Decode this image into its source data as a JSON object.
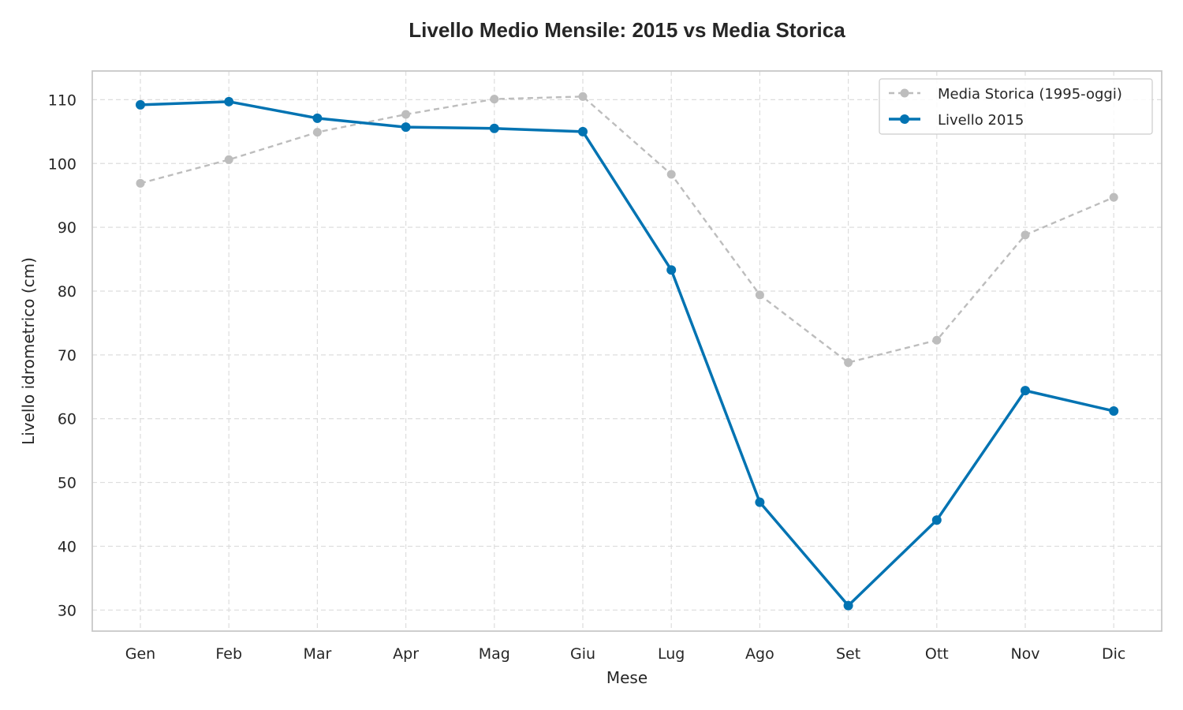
{
  "chart_data": {
    "type": "line",
    "title": "Livello Medio Mensile: 2015 vs Media Storica",
    "xlabel": "Mese",
    "ylabel": "Livello idrometrico (cm)",
    "categories": [
      "Gen",
      "Feb",
      "Mar",
      "Apr",
      "Mag",
      "Giu",
      "Lug",
      "Ago",
      "Set",
      "Ott",
      "Nov",
      "Dic"
    ],
    "ylim": [
      26.7,
      114.5
    ],
    "yticks": [
      30,
      40,
      50,
      60,
      70,
      80,
      90,
      100,
      110
    ],
    "grid": true,
    "legend_position": "top-right",
    "series": [
      {
        "name": "Media Storica (1995-oggi)",
        "style": "dashed",
        "color": "#bdbdbd",
        "values": [
          96.9,
          100.6,
          104.9,
          107.7,
          110.1,
          110.5,
          98.3,
          79.4,
          68.8,
          72.3,
          88.8,
          94.7
        ]
      },
      {
        "name": "Livello 2015",
        "style": "solid",
        "color": "#0173b2",
        "values": [
          109.2,
          109.7,
          107.1,
          105.7,
          105.5,
          105.0,
          83.3,
          46.9,
          30.7,
          44.1,
          64.4,
          61.2
        ]
      }
    ]
  }
}
